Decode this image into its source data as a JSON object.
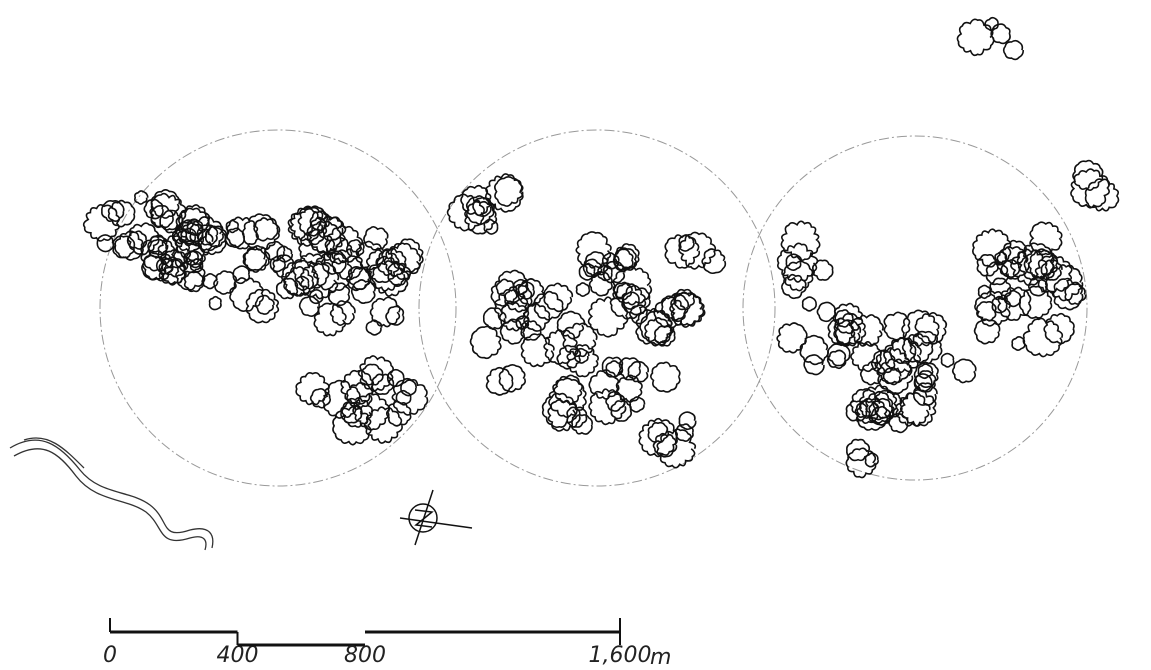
{
  "scale_bar": {
    "ticks": [
      0,
      400,
      800,
      {
        "value": 1600,
        "label": "1,600"
      }
    ],
    "unit": "m"
  }
}
